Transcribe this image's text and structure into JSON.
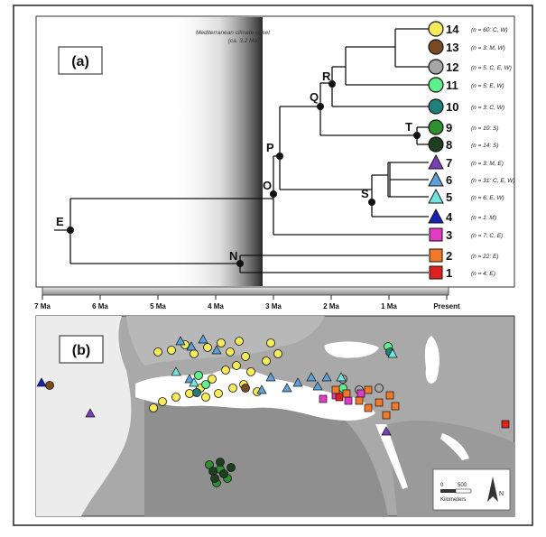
{
  "panel_a": {
    "label": "(a)",
    "annotation_line1": "Mediterranean climate onset",
    "annotation_line2": "(ca. 3.2 Ma)",
    "nodes": [
      "E",
      "N",
      "O",
      "P",
      "Q",
      "R",
      "S",
      "T"
    ],
    "tips": [
      {
        "id": "14",
        "note": "(n = 60: C, W)",
        "shape": "circle",
        "color": "#f5ec5a"
      },
      {
        "id": "13",
        "note": "(n = 3: M, W)",
        "shape": "circle",
        "color": "#7a4a22"
      },
      {
        "id": "12",
        "note": "(n = 5: C, E, W)",
        "shape": "circle",
        "color": "#a6a6a6"
      },
      {
        "id": "11",
        "note": "(n = 5: E, W)",
        "shape": "circle",
        "color": "#5ef08a"
      },
      {
        "id": "10",
        "note": "(n = 3: C, W)",
        "shape": "circle",
        "color": "#1f7f7a"
      },
      {
        "id": "9",
        "note": "(n = 10: S)",
        "shape": "circle",
        "color": "#2e8f2e"
      },
      {
        "id": "8",
        "note": "(n = 14: S)",
        "shape": "circle",
        "color": "#1f3d1f"
      },
      {
        "id": "7",
        "note": "(n = 3: M, E)",
        "shape": "triangle",
        "color": "#7a3fb8"
      },
      {
        "id": "6",
        "note": "(n = 31: C, E, W)",
        "shape": "triangle",
        "color": "#5da0d8"
      },
      {
        "id": "5",
        "note": "(n = 6: E, W)",
        "shape": "triangle",
        "color": "#70e6e0"
      },
      {
        "id": "4",
        "note": "(n = 1: M)",
        "shape": "triangle",
        "color": "#1a22b5"
      },
      {
        "id": "3",
        "note": "(n = 7: C, E)",
        "shape": "square",
        "color": "#e03cc8"
      },
      {
        "id": "2",
        "note": "(n = 22: E)",
        "shape": "square",
        "color": "#f07a2a"
      },
      {
        "id": "1",
        "note": "(n = 4: E)",
        "shape": "square",
        "color": "#e02020"
      }
    ],
    "timescale": [
      "7 Ma",
      "6 Ma",
      "5 Ma",
      "4 Ma",
      "3 Ma",
      "2 Ma",
      "1 Ma",
      "Present"
    ]
  },
  "panel_b": {
    "label": "(b)",
    "scale_zero": "0",
    "scale_value": "500",
    "scale_unit": "Kilometers",
    "north_label": "N"
  }
}
